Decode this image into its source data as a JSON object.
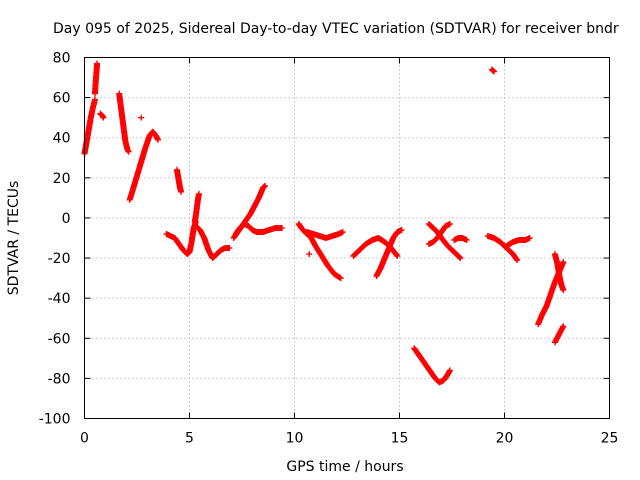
{
  "chart_data": {
    "type": "scatter",
    "title": "Day 095 of 2025, Sidereal Day-to-day VTEC variation (SDTVAR) for receiver bndr",
    "xlabel": "GPS time / hours",
    "ylabel": "SDTVAR / TECUs",
    "xlim": [
      0,
      25
    ],
    "ylim": [
      -100,
      80
    ],
    "xticks": [
      0,
      5,
      10,
      15,
      20,
      25
    ],
    "yticks": [
      -100,
      -80,
      -60,
      -40,
      -20,
      0,
      20,
      40,
      60,
      80
    ],
    "xtick_labels": [
      "0",
      "5",
      "10",
      "15",
      "20",
      "25"
    ],
    "ytick_labels": [
      "-100",
      "-80",
      "-60",
      "-40",
      "-20",
      "0",
      "20",
      "40",
      "60",
      "80"
    ],
    "grid": true,
    "marker": "+",
    "color": "#ff0000",
    "series": [
      {
        "segments": [
          [
            [
              0.0,
              32
            ],
            [
              0.1,
              38
            ],
            [
              0.2,
              44
            ],
            [
              0.3,
              50
            ],
            [
              0.4,
              55
            ],
            [
              0.5,
              59
            ]
          ],
          [
            [
              0.5,
              62
            ],
            [
              0.52,
              66
            ],
            [
              0.55,
              70
            ],
            [
              0.58,
              74
            ],
            [
              0.6,
              77
            ]
          ],
          [
            [
              0.75,
              52
            ],
            [
              0.85,
              51
            ],
            [
              0.9,
              50
            ]
          ],
          [
            [
              1.65,
              62
            ],
            [
              1.7,
              58
            ],
            [
              1.75,
              54
            ],
            [
              1.8,
              50
            ],
            [
              1.85,
              46
            ],
            [
              1.9,
              42
            ],
            [
              1.95,
              38
            ],
            [
              2.05,
              34
            ],
            [
              2.1,
              33
            ]
          ],
          [
            [
              2.15,
              9
            ],
            [
              2.3,
              14
            ],
            [
              2.5,
              21
            ],
            [
              2.7,
              28
            ],
            [
              2.9,
              35
            ],
            [
              3.1,
              41
            ],
            [
              3.25,
              43
            ],
            [
              3.4,
              41
            ],
            [
              3.5,
              39
            ]
          ],
          [
            [
              2.7,
              50
            ]
          ],
          [
            [
              4.4,
              24
            ],
            [
              4.45,
              21
            ],
            [
              4.5,
              18
            ],
            [
              4.55,
              15
            ],
            [
              4.6,
              13
            ]
          ],
          [
            [
              3.9,
              -8
            ],
            [
              4.1,
              -9
            ],
            [
              4.3,
              -10
            ],
            [
              4.5,
              -13
            ],
            [
              4.7,
              -16
            ],
            [
              4.9,
              -18
            ],
            [
              5.0,
              -17
            ],
            [
              5.1,
              -12
            ],
            [
              5.2,
              -5
            ],
            [
              5.3,
              -2
            ]
          ],
          [
            [
              5.25,
              -2
            ],
            [
              5.3,
              1
            ],
            [
              5.35,
              5
            ],
            [
              5.4,
              9
            ],
            [
              5.45,
              12
            ]
          ],
          [
            [
              5.3,
              -4
            ],
            [
              5.5,
              -6
            ],
            [
              5.7,
              -10
            ],
            [
              5.9,
              -16
            ],
            [
              6.1,
              -20
            ],
            [
              6.3,
              -18
            ],
            [
              6.5,
              -16
            ],
            [
              6.7,
              -15
            ],
            [
              6.9,
              -15
            ]
          ],
          [
            [
              7.1,
              -10
            ],
            [
              7.3,
              -7
            ],
            [
              7.5,
              -4
            ],
            [
              7.7,
              -1
            ],
            [
              7.9,
              2
            ],
            [
              8.1,
              6
            ],
            [
              8.3,
              10
            ],
            [
              8.5,
              15
            ],
            [
              8.6,
              16
            ]
          ],
          [
            [
              7.2,
              -8
            ],
            [
              7.4,
              -5
            ],
            [
              7.6,
              -3
            ],
            [
              7.8,
              -4
            ],
            [
              8.0,
              -6
            ],
            [
              8.2,
              -7
            ],
            [
              8.5,
              -7
            ],
            [
              8.8,
              -6
            ],
            [
              9.1,
              -5
            ],
            [
              9.4,
              -5
            ]
          ],
          [
            [
              10.2,
              -3
            ],
            [
              10.4,
              -6
            ],
            [
              10.6,
              -8
            ],
            [
              10.8,
              -10
            ],
            [
              11.0,
              -14
            ],
            [
              11.3,
              -19
            ],
            [
              11.6,
              -24
            ],
            [
              11.9,
              -28
            ],
            [
              12.2,
              -30
            ]
          ],
          [
            [
              10.6,
              -7
            ],
            [
              10.9,
              -8
            ],
            [
              11.2,
              -9
            ],
            [
              11.5,
              -10
            ],
            [
              11.8,
              -9
            ],
            [
              12.1,
              -8
            ],
            [
              12.3,
              -7
            ]
          ],
          [
            [
              10.7,
              -18
            ]
          ],
          [
            [
              12.8,
              -19
            ],
            [
              13.1,
              -16
            ],
            [
              13.4,
              -13
            ],
            [
              13.7,
              -11
            ],
            [
              14.0,
              -10
            ],
            [
              14.3,
              -12
            ],
            [
              14.6,
              -15
            ],
            [
              14.9,
              -19
            ]
          ],
          [
            [
              13.9,
              -29
            ],
            [
              14.1,
              -25
            ],
            [
              14.3,
              -20
            ],
            [
              14.5,
              -15
            ],
            [
              14.7,
              -10
            ],
            [
              14.9,
              -7
            ],
            [
              15.1,
              -6
            ]
          ],
          [
            [
              15.7,
              -65
            ],
            [
              15.9,
              -68
            ],
            [
              16.1,
              -71
            ],
            [
              16.3,
              -74
            ],
            [
              16.5,
              -77
            ],
            [
              16.7,
              -80
            ],
            [
              16.9,
              -82
            ],
            [
              17.1,
              -81
            ],
            [
              17.3,
              -78
            ],
            [
              17.4,
              -76
            ]
          ],
          [
            [
              16.4,
              -3
            ],
            [
              16.6,
              -5
            ],
            [
              16.8,
              -7
            ],
            [
              17.0,
              -10
            ],
            [
              17.3,
              -14
            ],
            [
              17.6,
              -17
            ],
            [
              17.9,
              -20
            ]
          ],
          [
            [
              16.4,
              -13
            ],
            [
              16.6,
              -12
            ],
            [
              16.8,
              -10
            ],
            [
              17.0,
              -7
            ],
            [
              17.2,
              -4
            ],
            [
              17.4,
              -3
            ]
          ],
          [
            [
              17.6,
              -11
            ],
            [
              17.8,
              -10
            ],
            [
              18.0,
              -10
            ],
            [
              18.2,
              -11
            ]
          ],
          [
            [
              19.2,
              -9
            ],
            [
              19.5,
              -10
            ],
            [
              19.8,
              -12
            ],
            [
              20.1,
              -15
            ],
            [
              20.4,
              -18
            ],
            [
              20.6,
              -21
            ]
          ],
          [
            [
              20.1,
              -14
            ],
            [
              20.4,
              -12
            ],
            [
              20.7,
              -11
            ],
            [
              21.0,
              -11
            ],
            [
              21.2,
              -10
            ]
          ],
          [
            [
              19.4,
              74
            ],
            [
              19.5,
              73
            ]
          ],
          [
            [
              21.6,
              -53
            ],
            [
              21.8,
              -48
            ],
            [
              22.0,
              -44
            ],
            [
              22.2,
              -38
            ],
            [
              22.4,
              -32
            ],
            [
              22.6,
              -27
            ],
            [
              22.8,
              -22
            ]
          ],
          [
            [
              22.4,
              -18
            ],
            [
              22.5,
              -22
            ],
            [
              22.6,
              -28
            ],
            [
              22.7,
              -33
            ],
            [
              22.8,
              -36
            ]
          ],
          [
            [
              22.4,
              -62
            ],
            [
              22.5,
              -60
            ],
            [
              22.6,
              -58
            ],
            [
              22.7,
              -56
            ],
            [
              22.8,
              -54
            ]
          ]
        ]
      }
    ]
  }
}
